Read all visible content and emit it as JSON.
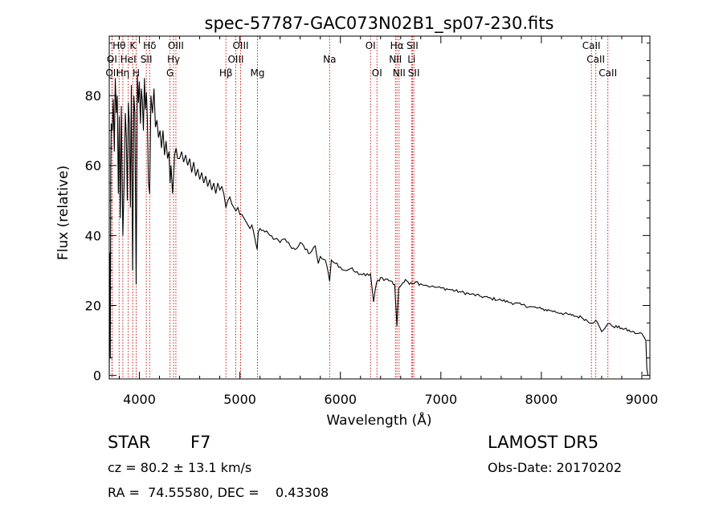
{
  "chart_data": {
    "type": "line",
    "title": "spec-57787-GAC073N02B1_sp07-230.fits",
    "xlabel": "Wavelength (Å)",
    "ylabel": "Flux (relative)",
    "xlim": [
      3700,
      9080
    ],
    "ylim": [
      -1,
      97
    ],
    "x_ticks": [
      4000,
      5000,
      6000,
      7000,
      8000,
      9000
    ],
    "y_ticks": [
      0,
      20,
      40,
      60,
      80
    ],
    "line_color": "#000000",
    "marker_color": "#cc0000",
    "grid": false,
    "series": [
      {
        "x": [
          3700,
          3705,
          3710,
          3715,
          3720,
          3730,
          3740,
          3750,
          3760,
          3770,
          3780,
          3790,
          3800,
          3810,
          3820,
          3835,
          3850,
          3860,
          3870,
          3880,
          3890,
          3900,
          3910,
          3920,
          3933,
          3945,
          3955,
          3968,
          3980,
          3990,
          4000,
          4010,
          4020,
          4030,
          4040,
          4050,
          4060,
          4070,
          4080,
          4090,
          4102,
          4115,
          4130,
          4145,
          4160,
          4175,
          4190,
          4205,
          4220,
          4235,
          4250,
          4265,
          4280,
          4295,
          4305,
          4315,
          4330,
          4340,
          4350,
          4365,
          4380,
          4400,
          4420,
          4440,
          4460,
          4480,
          4500,
          4520,
          4540,
          4560,
          4580,
          4600,
          4620,
          4640,
          4660,
          4680,
          4700,
          4720,
          4740,
          4760,
          4780,
          4800,
          4820,
          4840,
          4861,
          4880,
          4900,
          4920,
          4940,
          4960,
          4980,
          5000,
          5020,
          5040,
          5060,
          5080,
          5100,
          5120,
          5150,
          5172,
          5183,
          5200,
          5250,
          5300,
          5350,
          5400,
          5450,
          5500,
          5550,
          5600,
          5650,
          5700,
          5750,
          5780,
          5800,
          5850,
          5893,
          5910,
          5950,
          6000,
          6050,
          6100,
          6150,
          6200,
          6250,
          6300,
          6330,
          6360,
          6400,
          6450,
          6500,
          6540,
          6563,
          6580,
          6620,
          6660,
          6700,
          6750,
          6800,
          6850,
          6900,
          6950,
          7000,
          7100,
          7200,
          7300,
          7400,
          7500,
          7600,
          7700,
          7800,
          7900,
          8000,
          8100,
          8200,
          8300,
          8400,
          8500,
          8542,
          8600,
          8662,
          8700,
          8800,
          8900,
          8950,
          9000,
          9020,
          9040,
          9050,
          9060
        ],
        "y": [
          0,
          35,
          5,
          60,
          72,
          70,
          79,
          64,
          85,
          75,
          80,
          52,
          74,
          45,
          77,
          40,
          58,
          75,
          68,
          50,
          78,
          72,
          48,
          83,
          30,
          80,
          75,
          26,
          86,
          78,
          84,
          72,
          82,
          78,
          70,
          85,
          76,
          81,
          73,
          55,
          52,
          80,
          75,
          82,
          71,
          73,
          68,
          70,
          65,
          70,
          63,
          67,
          62,
          64,
          55,
          60,
          52,
          57,
          63,
          65,
          62,
          62,
          64,
          61,
          63,
          60,
          62,
          58,
          61,
          57,
          59,
          56,
          58,
          55,
          57,
          54,
          56,
          53,
          55,
          52,
          55,
          53,
          54,
          52,
          48,
          50,
          51,
          49,
          48,
          47,
          48,
          46,
          46,
          45,
          44,
          43,
          42,
          43,
          39,
          36,
          41,
          42,
          41,
          40,
          39,
          38,
          39,
          37,
          36,
          38,
          36,
          35,
          37,
          32,
          34,
          33,
          27,
          33,
          32,
          31,
          30,
          30.5,
          29.5,
          29,
          28.5,
          29,
          21,
          26.5,
          28,
          27.5,
          27,
          26,
          14,
          25,
          26.5,
          27,
          26.5,
          26.8,
          26.2,
          25.8,
          25.4,
          25.2,
          25,
          24.5,
          23.8,
          23.2,
          22.6,
          22,
          21.5,
          20.8,
          20.2,
          19.6,
          19,
          18.5,
          17.8,
          17.2,
          16.6,
          15,
          15.8,
          12.5,
          14.8,
          14.2,
          13.5,
          12.5,
          12,
          12,
          11,
          10,
          2,
          0
        ]
      }
    ],
    "spectral_lines": [
      {
        "label": "Hθ",
        "x": 3798,
        "row": 1
      },
      {
        "label": "K",
        "x": 3934,
        "row": 1
      },
      {
        "label": "Hδ",
        "x": 4102,
        "row": 1
      },
      {
        "label": "OIII",
        "x": 4363,
        "row": 1
      },
      {
        "label": "OIII",
        "x": 5007,
        "row": 1
      },
      {
        "label": "OI",
        "x": 6300,
        "row": 1
      },
      {
        "label": "Hα",
        "x": 6563,
        "row": 1
      },
      {
        "label": "SII",
        "x": 6717,
        "row": 1
      },
      {
        "label": "CaII",
        "x": 8498,
        "row": 1
      },
      {
        "label": "OI",
        "x": 3727,
        "row": 2
      },
      {
        "label": "HeI",
        "x": 3889,
        "row": 2
      },
      {
        "label": "SII",
        "x": 4069,
        "row": 2
      },
      {
        "label": "Hγ",
        "x": 4340,
        "row": 2
      },
      {
        "label": "OIII",
        "x": 4959,
        "row": 2
      },
      {
        "label": "Na",
        "x": 5893,
        "row": 2
      },
      {
        "label": "NII",
        "x": 6548,
        "row": 2
      },
      {
        "label": "Li",
        "x": 6708,
        "row": 2
      },
      {
        "label": "CaII",
        "x": 8542,
        "row": 2
      },
      {
        "label": "OII",
        "x": 3729,
        "row": 3
      },
      {
        "label": "Hη",
        "x": 3835,
        "row": 3
      },
      {
        "label": "H",
        "x": 3968,
        "row": 3
      },
      {
        "label": "G",
        "x": 4305,
        "row": 3
      },
      {
        "label": "Hβ",
        "x": 4861,
        "row": 3
      },
      {
        "label": "Mg",
        "x": 5175,
        "row": 3
      },
      {
        "label": "OI",
        "x": 6364,
        "row": 3
      },
      {
        "label": "NII",
        "x": 6584,
        "row": 3
      },
      {
        "label": "SII",
        "x": 6731,
        "row": 3
      },
      {
        "label": "CaII",
        "x": 8662,
        "row": 3
      }
    ]
  },
  "info": {
    "object_class": "STAR",
    "subclass": "F7",
    "survey": "LAMOST DR5",
    "redshift": "cz = 80.2 ± 13.1 km/s",
    "obs_date": "Obs-Date: 20170202",
    "coords": "RA =  74.55580, DEC =    0.43308"
  }
}
